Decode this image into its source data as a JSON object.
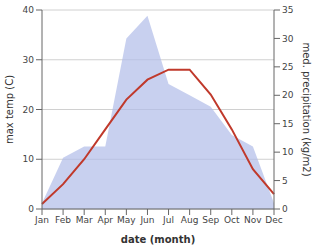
{
  "chart_data": {
    "type": "line",
    "categories": [
      "Jan",
      "Feb",
      "Mar",
      "Apr",
      "May",
      "Jun",
      "Jul",
      "Aug",
      "Sep",
      "Oct",
      "Nov",
      "Dec"
    ],
    "series": [
      {
        "type": "area",
        "axis": "y2",
        "color": "#b0bce8",
        "values": [
          1,
          9,
          11,
          11,
          30,
          34,
          22,
          20,
          18,
          13,
          11,
          1
        ]
      },
      {
        "type": "line",
        "color": "#c0392b",
        "values": [
          1,
          5,
          10,
          16,
          22,
          26,
          28,
          28,
          23,
          16,
          8,
          3
        ]
      }
    ],
    "xlabel": "date (month)",
    "ylabel": "max temp (C)",
    "y2label": "med. precipitation (kg/m2)",
    "ylim": [
      0,
      40
    ],
    "yticks": [
      0,
      10,
      20,
      30,
      40
    ],
    "y2lim": [
      0,
      35
    ],
    "y2ticks": [
      0,
      5,
      10,
      15,
      20,
      25,
      30,
      35
    ],
    "grid": true
  }
}
